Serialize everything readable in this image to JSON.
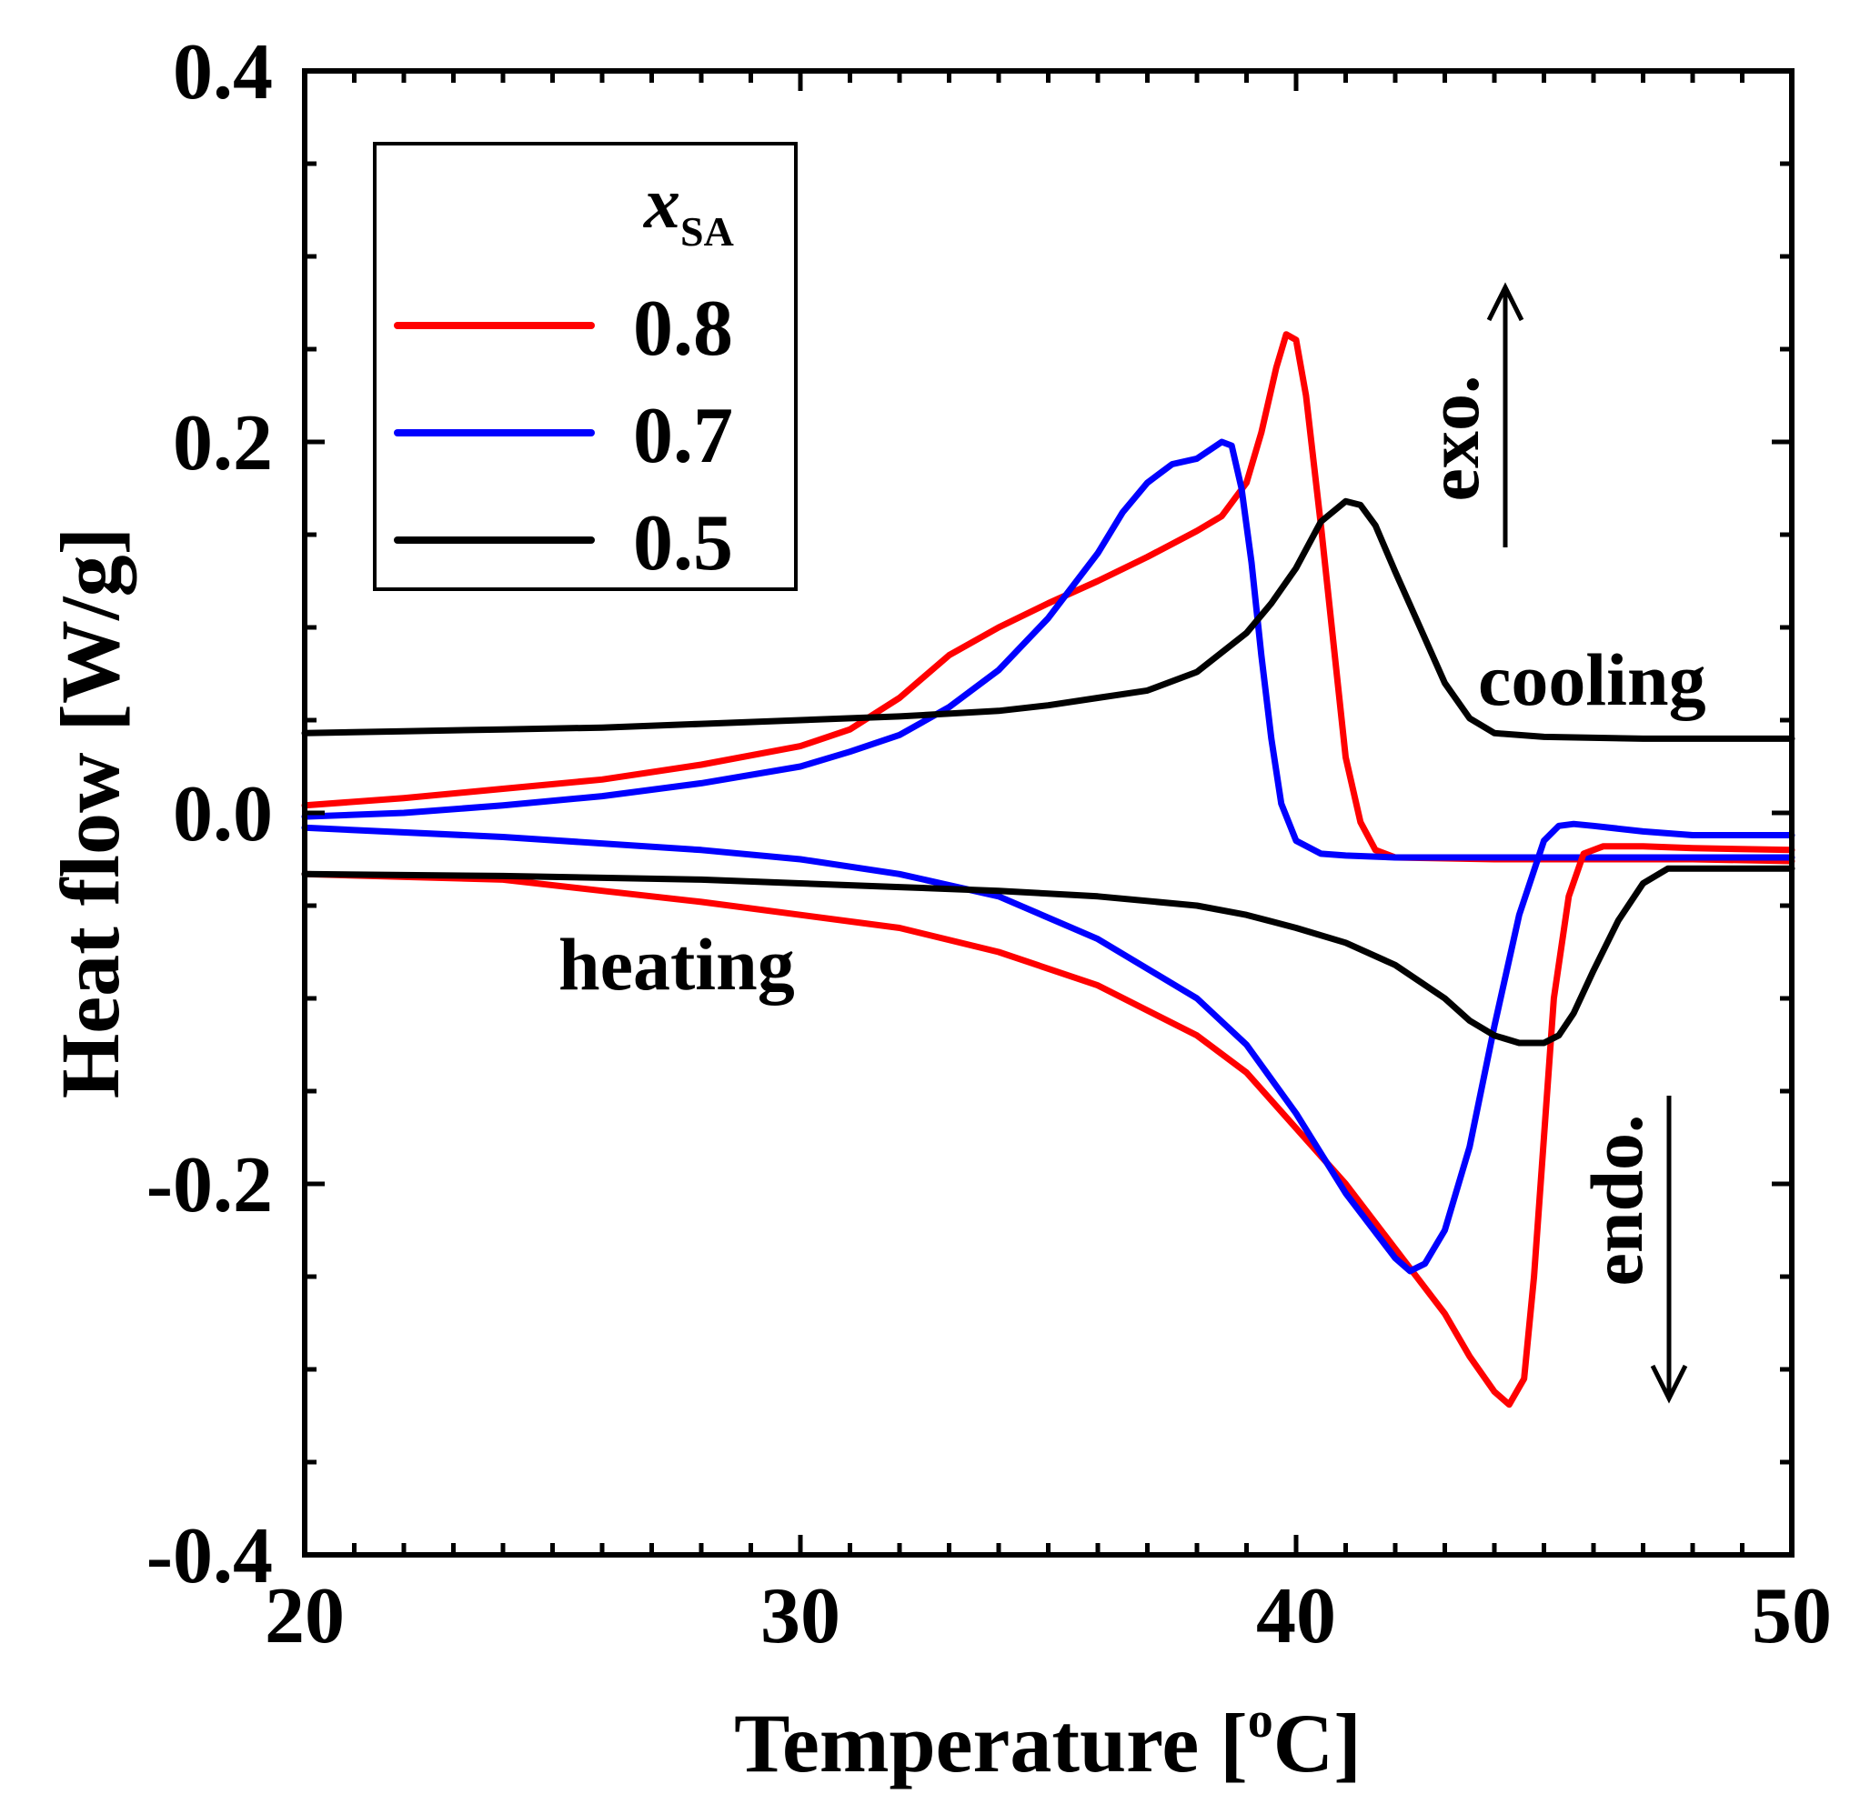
{
  "chart_data": {
    "type": "line",
    "xlabel": "Temperature [°C]",
    "xlabel_parts": {
      "main": "Temperature [",
      "sup": "o",
      "unit": "C]"
    },
    "ylabel": "Heat flow [W/g]",
    "xlim": [
      20,
      50
    ],
    "ylim": [
      -0.4,
      0.4
    ],
    "xticks": [
      20,
      30,
      40,
      50
    ],
    "xtick_labels": [
      "20",
      "30",
      "40",
      "50"
    ],
    "yticks": [
      -0.4,
      -0.2,
      0.0,
      0.2,
      0.4
    ],
    "ytick_labels": [
      "-0.4",
      "-0.2",
      "0.0",
      "0.2",
      "0.4"
    ],
    "x_minor_step": 1,
    "y_minor_step": 0.05,
    "grid": false,
    "legend": {
      "placement": "top-left",
      "title_symbol": "x",
      "title_subscript": "SA",
      "entries": [
        "0.8",
        "0.7",
        "0.5"
      ]
    },
    "annotations": {
      "cooling": "cooling",
      "heating": "heating",
      "exo": "exo.",
      "endo": "endo."
    },
    "series": [
      {
        "name": "0.8",
        "color": "#ff0000",
        "branch": "cooling",
        "x": [
          20,
          22,
          24,
          26,
          28,
          30,
          31,
          32,
          33,
          34,
          35,
          36,
          37,
          38,
          38.5,
          39.0,
          39.3,
          39.6,
          39.8,
          40.0,
          40.2,
          40.5,
          40.8,
          41.0,
          41.3,
          41.6,
          42,
          44,
          46,
          48,
          50
        ],
        "y": [
          0.004,
          0.008,
          0.013,
          0.018,
          0.026,
          0.036,
          0.045,
          0.062,
          0.085,
          0.1,
          0.113,
          0.125,
          0.138,
          0.152,
          0.16,
          0.178,
          0.205,
          0.24,
          0.258,
          0.255,
          0.225,
          0.155,
          0.08,
          0.03,
          -0.005,
          -0.02,
          -0.024,
          -0.025,
          -0.025,
          -0.025,
          -0.026
        ]
      },
      {
        "name": "0.7",
        "color": "#0000ff",
        "branch": "cooling",
        "x": [
          20,
          22,
          24,
          26,
          28,
          30,
          31,
          32,
          33,
          34,
          35,
          36,
          36.5,
          37,
          37.5,
          38.0,
          38.5,
          38.7,
          38.9,
          39.1,
          39.3,
          39.5,
          39.7,
          40.0,
          40.5,
          41,
          42,
          45,
          48,
          50
        ],
        "y": [
          -0.002,
          0.0,
          0.004,
          0.009,
          0.016,
          0.025,
          0.033,
          0.042,
          0.057,
          0.077,
          0.105,
          0.14,
          0.162,
          0.178,
          0.188,
          0.191,
          0.2,
          0.198,
          0.175,
          0.135,
          0.085,
          0.04,
          0.005,
          -0.015,
          -0.022,
          -0.023,
          -0.024,
          -0.024,
          -0.024,
          -0.024
        ]
      },
      {
        "name": "0.5",
        "color": "#000000",
        "branch": "cooling",
        "x": [
          20,
          22,
          24,
          26,
          28,
          30,
          32,
          34,
          35,
          36,
          37,
          38,
          39,
          39.5,
          40,
          40.5,
          41.0,
          41.3,
          41.6,
          42.0,
          42.5,
          43.0,
          43.5,
          44.0,
          45,
          47,
          50
        ],
        "y": [
          0.043,
          0.044,
          0.045,
          0.046,
          0.048,
          0.05,
          0.052,
          0.055,
          0.058,
          0.062,
          0.066,
          0.076,
          0.097,
          0.113,
          0.132,
          0.157,
          0.168,
          0.166,
          0.155,
          0.13,
          0.1,
          0.07,
          0.051,
          0.043,
          0.041,
          0.04,
          0.04
        ]
      },
      {
        "name": "0.8",
        "color": "#ff0000",
        "branch": "heating",
        "x": [
          20,
          24,
          26,
          28,
          30,
          32,
          34,
          36,
          38,
          39,
          40,
          41,
          42,
          43,
          43.5,
          44.0,
          44.3,
          44.6,
          44.8,
          45.0,
          45.2,
          45.5,
          45.8,
          46.2,
          47,
          48,
          50
        ],
        "y": [
          -0.033,
          -0.036,
          -0.042,
          -0.048,
          -0.055,
          -0.062,
          -0.075,
          -0.093,
          -0.12,
          -0.14,
          -0.17,
          -0.2,
          -0.235,
          -0.27,
          -0.293,
          -0.312,
          -0.319,
          -0.305,
          -0.25,
          -0.175,
          -0.1,
          -0.045,
          -0.022,
          -0.018,
          -0.018,
          -0.019,
          -0.02
        ]
      },
      {
        "name": "0.7",
        "color": "#0000ff",
        "branch": "heating",
        "x": [
          20,
          24,
          28,
          30,
          32,
          34,
          36,
          38,
          39,
          40,
          41,
          42,
          42.3,
          42.6,
          43.0,
          43.5,
          44.0,
          44.5,
          45.0,
          45.3,
          45.6,
          46,
          47,
          48,
          50
        ],
        "y": [
          -0.008,
          -0.013,
          -0.02,
          -0.025,
          -0.033,
          -0.045,
          -0.068,
          -0.1,
          -0.125,
          -0.162,
          -0.205,
          -0.24,
          -0.247,
          -0.243,
          -0.225,
          -0.18,
          -0.115,
          -0.055,
          -0.015,
          -0.007,
          -0.006,
          -0.007,
          -0.01,
          -0.012,
          -0.012
        ]
      },
      {
        "name": "0.5",
        "color": "#000000",
        "branch": "heating",
        "x": [
          20,
          24,
          28,
          30,
          32,
          34,
          36,
          38,
          39,
          40,
          41,
          42,
          43,
          43.5,
          44,
          44.5,
          45.0,
          45.3,
          45.6,
          46.0,
          46.5,
          47,
          47.5,
          48,
          50
        ],
        "y": [
          -0.033,
          -0.034,
          -0.036,
          -0.038,
          -0.04,
          -0.042,
          -0.045,
          -0.05,
          -0.055,
          -0.062,
          -0.07,
          -0.082,
          -0.1,
          -0.112,
          -0.12,
          -0.124,
          -0.124,
          -0.12,
          -0.108,
          -0.085,
          -0.058,
          -0.038,
          -0.03,
          -0.03,
          -0.03
        ]
      }
    ]
  }
}
